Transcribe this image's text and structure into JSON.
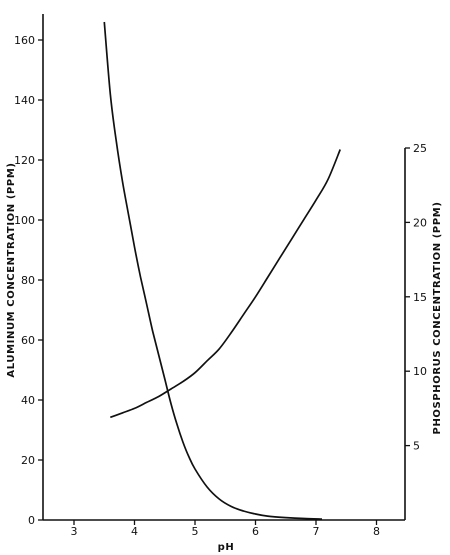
{
  "chart_data": {
    "type": "line",
    "xlabel": "pH",
    "ylabel": "ALUMINUM CONCENTRATION (PPM)",
    "y2label": "PHOSPHORUS CONCENTRATION (PPM)",
    "xlim": [
      2.5,
      8.5
    ],
    "ylim": [
      0,
      170
    ],
    "y2lim": [
      0,
      25
    ],
    "x_ticks": [
      3,
      4,
      5,
      6,
      7,
      8
    ],
    "y_ticks": [
      0,
      20,
      40,
      60,
      80,
      100,
      120,
      140,
      160
    ],
    "y2_ticks": [
      5,
      10,
      15,
      20,
      25
    ],
    "series": [
      {
        "axis": "left",
        "x": [
          3.5,
          3.6,
          3.7,
          3.8,
          3.9,
          4.0,
          4.1,
          4.2,
          4.3,
          4.4,
          4.5,
          4.6,
          4.7,
          4.8,
          4.9,
          5.0,
          5.2,
          5.4,
          5.6,
          5.8,
          6.0,
          6.2,
          6.5,
          6.8,
          7.1
        ],
        "values": [
          166,
          142,
          126,
          113,
          102,
          91,
          81,
          72,
          63,
          55,
          47,
          39,
          32,
          26,
          21,
          17,
          11,
          7,
          4.5,
          3,
          2,
          1.3,
          0.8,
          0.5,
          0.3
        ]
      },
      {
        "axis": "right",
        "x": [
          3.6,
          3.8,
          4.0,
          4.2,
          4.4,
          4.6,
          4.8,
          5.0,
          5.2,
          5.4,
          5.6,
          5.8,
          6.0,
          6.2,
          6.4,
          6.6,
          6.8,
          7.0,
          7.2,
          7.4
        ],
        "values": [
          6.9,
          7.2,
          7.5,
          7.9,
          8.3,
          8.8,
          9.3,
          9.9,
          10.7,
          11.5,
          12.6,
          13.8,
          15.0,
          16.3,
          17.6,
          18.9,
          20.2,
          21.5,
          22.9,
          24.9
        ]
      }
    ]
  }
}
